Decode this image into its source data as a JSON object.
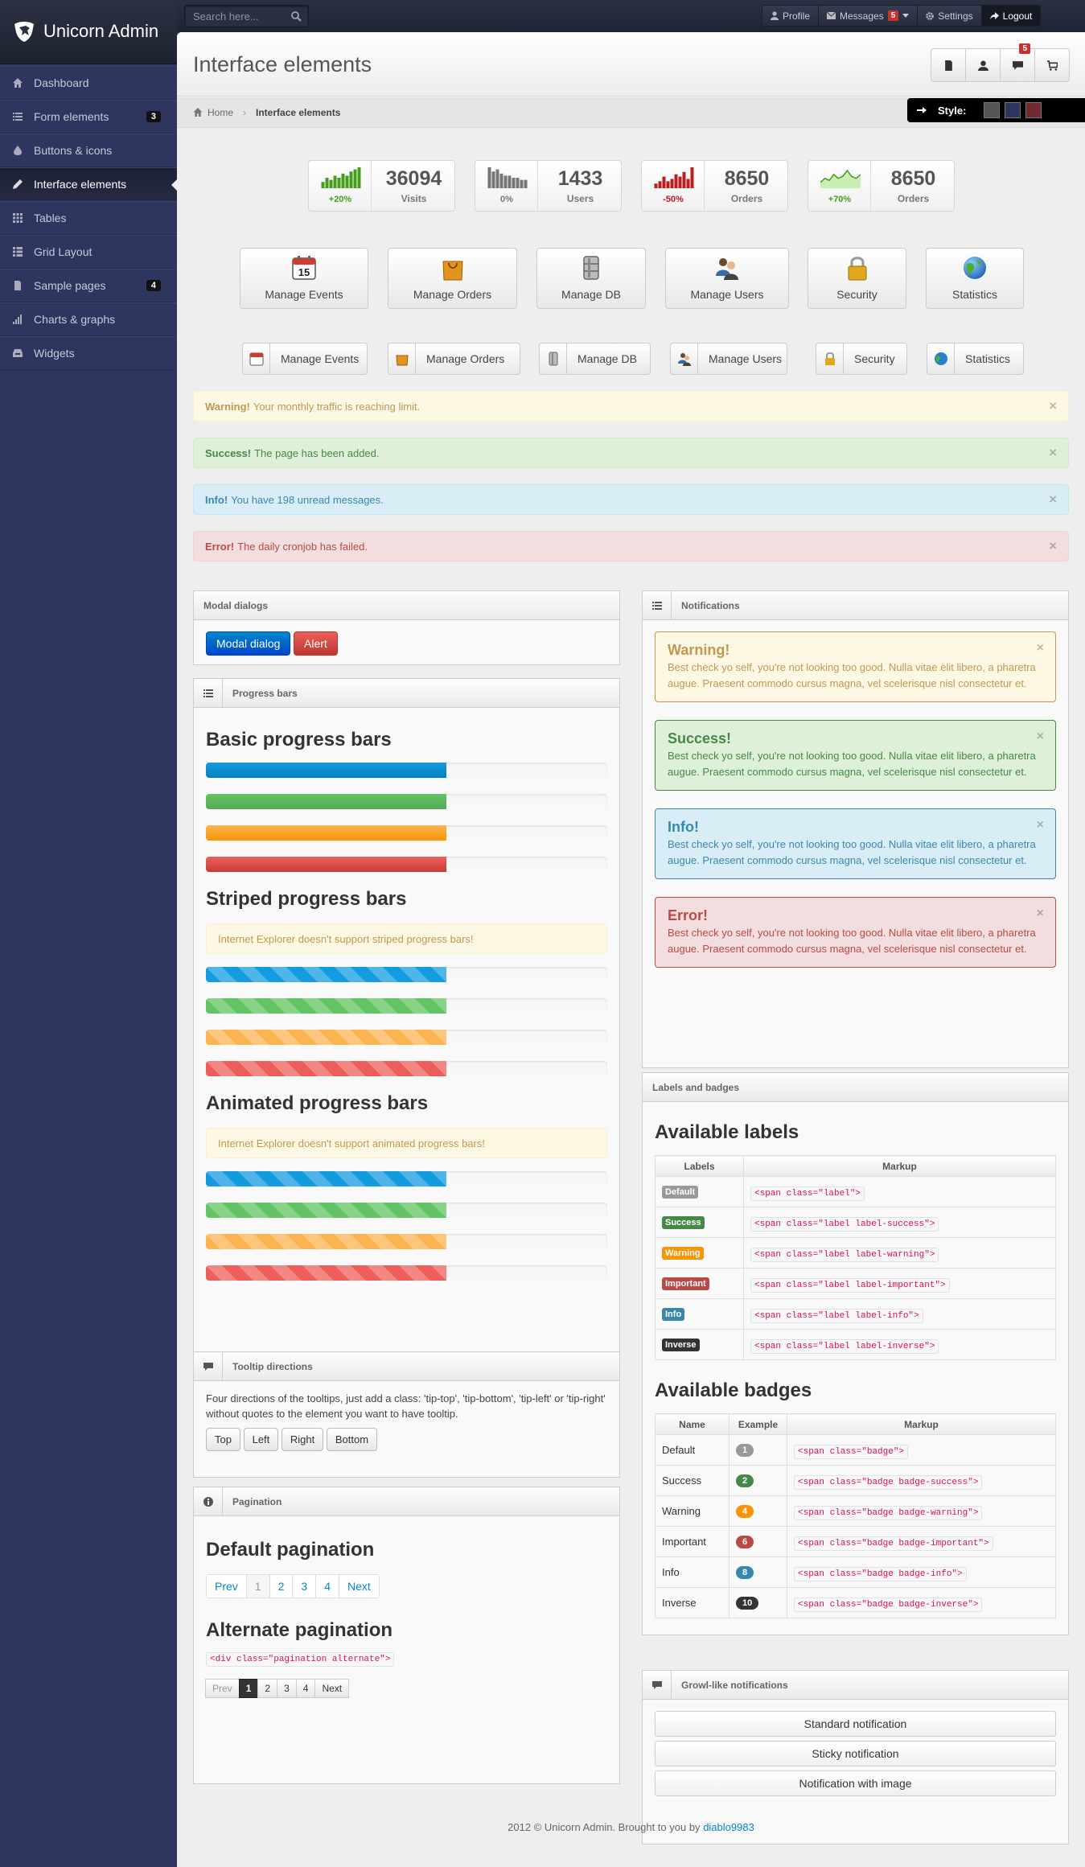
{
  "brand": {
    "title": "Unicorn Admin"
  },
  "search": {
    "placeholder": "Search here..."
  },
  "usernav": [
    {
      "label": "Profile",
      "icon": "user-icon"
    },
    {
      "label": "Messages",
      "icon": "envelope-icon",
      "badge": "5"
    },
    {
      "label": "Settings",
      "icon": "cog-icon"
    },
    {
      "label": "Logout",
      "icon": "share-icon"
    }
  ],
  "sidebar": [
    {
      "label": "Dashboard",
      "icon": "home-icon"
    },
    {
      "label": "Form elements",
      "icon": "list-icon",
      "count": "3"
    },
    {
      "label": "Buttons & icons",
      "icon": "tint-icon"
    },
    {
      "label": "Interface elements",
      "icon": "pencil-icon",
      "active": true
    },
    {
      "label": "Tables",
      "icon": "th-icon"
    },
    {
      "label": "Grid Layout",
      "icon": "th-list-icon"
    },
    {
      "label": "Sample pages",
      "icon": "file-icon",
      "count": "4"
    },
    {
      "label": "Charts & graphs",
      "icon": "signal-icon"
    },
    {
      "label": "Widgets",
      "icon": "inbox-icon"
    }
  ],
  "page": {
    "title": "Interface elements"
  },
  "quick_buttons": {
    "comments_badge": "5"
  },
  "breadcrumb": {
    "home": "Home",
    "current": "Interface elements"
  },
  "style_switcher": {
    "label": "Style:",
    "colors": [
      "#555555",
      "#2e3660",
      "#6e2a30"
    ]
  },
  "stats": [
    {
      "value": "36094",
      "label": "Visits",
      "change": "+20%",
      "color": "#459d1c",
      "spark": [
        3,
        5,
        4,
        6,
        5,
        7,
        6,
        8,
        9,
        10
      ]
    },
    {
      "value": "1433",
      "label": "Users",
      "change": "0%",
      "color": "#757575",
      "spark": [
        10,
        8,
        9,
        7,
        6,
        6,
        5,
        5,
        4,
        4
      ]
    },
    {
      "value": "8650",
      "label": "Orders",
      "change": "-50%",
      "color": "#ba1e20",
      "spark": [
        2,
        3,
        5,
        3,
        4,
        6,
        5,
        7,
        4,
        9
      ]
    },
    {
      "value": "8650",
      "label": "Orders",
      "change": "+70%",
      "color": "#459d1c",
      "spark": [
        3,
        5,
        4,
        7,
        5,
        6,
        9,
        6,
        5,
        7
      ]
    }
  ],
  "quick_actions": [
    {
      "label": "Manage Events",
      "icon": "calendar-icon",
      "day": "15"
    },
    {
      "label": "Manage Orders",
      "icon": "shopping-bag-icon"
    },
    {
      "label": "Manage DB",
      "icon": "database-icon"
    },
    {
      "label": "Manage Users",
      "icon": "people-icon"
    },
    {
      "label": "Security",
      "icon": "lock-icon"
    },
    {
      "label": "Statistics",
      "icon": "globe-icon"
    }
  ],
  "alerts": [
    {
      "title": "Warning!",
      "text": "Your monthly traffic is reaching limit."
    },
    {
      "title": "Success!",
      "text": "The page has been added."
    },
    {
      "title": "Info!",
      "text": "You have 198 unread messages."
    },
    {
      "title": "Error!",
      "text": "The daily cronjob has failed."
    }
  ],
  "modal": {
    "title": "Modal dialogs",
    "button": "Modal dialog",
    "alert_button": "Alert"
  },
  "progress": {
    "title": "Progress bars",
    "basic_heading": "Basic progress bars",
    "striped_heading": "Striped progress bars",
    "striped_note": "Internet Explorer doesn't support striped progress bars!",
    "animated_heading": "Animated progress bars",
    "animated_note": "Internet Explorer doesn't support animated progress bars!",
    "fill_fraction": 0.6
  },
  "notifications": {
    "title": "Notifications",
    "items": [
      {
        "title": "Warning!",
        "text": "Best check yo self, you're not looking too good. Nulla vitae elit libero, a pharetra augue. Praesent commodo cursus magna, vel scelerisque nisl consectetur et."
      },
      {
        "title": "Success!",
        "text": "Best check yo self, you're not looking too good. Nulla vitae elit libero, a pharetra augue. Praesent commodo cursus magna, vel scelerisque nisl consectetur et."
      },
      {
        "title": "Info!",
        "text": "Best check yo self, you're not looking too good. Nulla vitae elit libero, a pharetra augue. Praesent commodo cursus magna, vel scelerisque nisl consectetur et."
      },
      {
        "title": "Error!",
        "text": "Best check yo self, you're not looking too good. Nulla vitae elit libero, a pharetra augue. Praesent commodo cursus magna, vel scelerisque nisl consectetur et."
      }
    ]
  },
  "tooltips": {
    "title": "Tooltip directions",
    "text": "Four directions of the tooltips, just add a class: 'tip-top', 'tip-bottom', 'tip-left' or 'tip-right' without quotes to the element you want to have tooltip.",
    "buttons": [
      "Top",
      "Left",
      "Right",
      "Bottom"
    ]
  },
  "pagination": {
    "title": "Pagination",
    "default_heading": "Default pagination",
    "default_pages": [
      "Prev",
      "1",
      "2",
      "3",
      "4",
      "Next"
    ],
    "alternate_heading": "Alternate pagination",
    "alternate_code": "<div class=\"pagination alternate\">",
    "alternate_pages": [
      "Prev",
      "1",
      "2",
      "3",
      "4",
      "Next"
    ]
  },
  "labels_badges": {
    "title": "Labels and badges",
    "labels_heading": "Available labels",
    "labels_headers": [
      "Labels",
      "Markup"
    ],
    "labels": [
      {
        "name": "Default",
        "markup": "<span class=\"label\">",
        "color": "#999999"
      },
      {
        "name": "Success",
        "markup": "<span class=\"label label-success\">",
        "color": "#468847"
      },
      {
        "name": "Warning",
        "markup": "<span class=\"label label-warning\">",
        "color": "#f89406"
      },
      {
        "name": "Important",
        "markup": "<span class=\"label label-important\">",
        "color": "#b94a48"
      },
      {
        "name": "Info",
        "markup": "<span class=\"label label-info\">",
        "color": "#3a87ad"
      },
      {
        "name": "Inverse",
        "markup": "<span class=\"label label-inverse\">",
        "color": "#333333"
      }
    ],
    "badges_heading": "Available badges",
    "badges_headers": [
      "Name",
      "Example",
      "Markup"
    ],
    "badges": [
      {
        "name": "Default",
        "example": "1",
        "markup": "<span class=\"badge\">",
        "color": "#999999"
      },
      {
        "name": "Success",
        "example": "2",
        "markup": "<span class=\"badge badge-success\">",
        "color": "#468847"
      },
      {
        "name": "Warning",
        "example": "4",
        "markup": "<span class=\"badge badge-warning\">",
        "color": "#f89406"
      },
      {
        "name": "Important",
        "example": "6",
        "markup": "<span class=\"badge badge-important\">",
        "color": "#b94a48"
      },
      {
        "name": "Info",
        "example": "8",
        "markup": "<span class=\"badge badge-info\">",
        "color": "#3a87ad"
      },
      {
        "name": "Inverse",
        "example": "10",
        "markup": "<span class=\"badge badge-inverse\">",
        "color": "#333333"
      }
    ]
  },
  "growl": {
    "title": "Growl-like notifications",
    "buttons": [
      "Standard notification",
      "Sticky notification",
      "Notification with image"
    ]
  },
  "footer": {
    "text": "2012 © Unicorn Admin. Brought to you by",
    "link": "diablo9983"
  }
}
